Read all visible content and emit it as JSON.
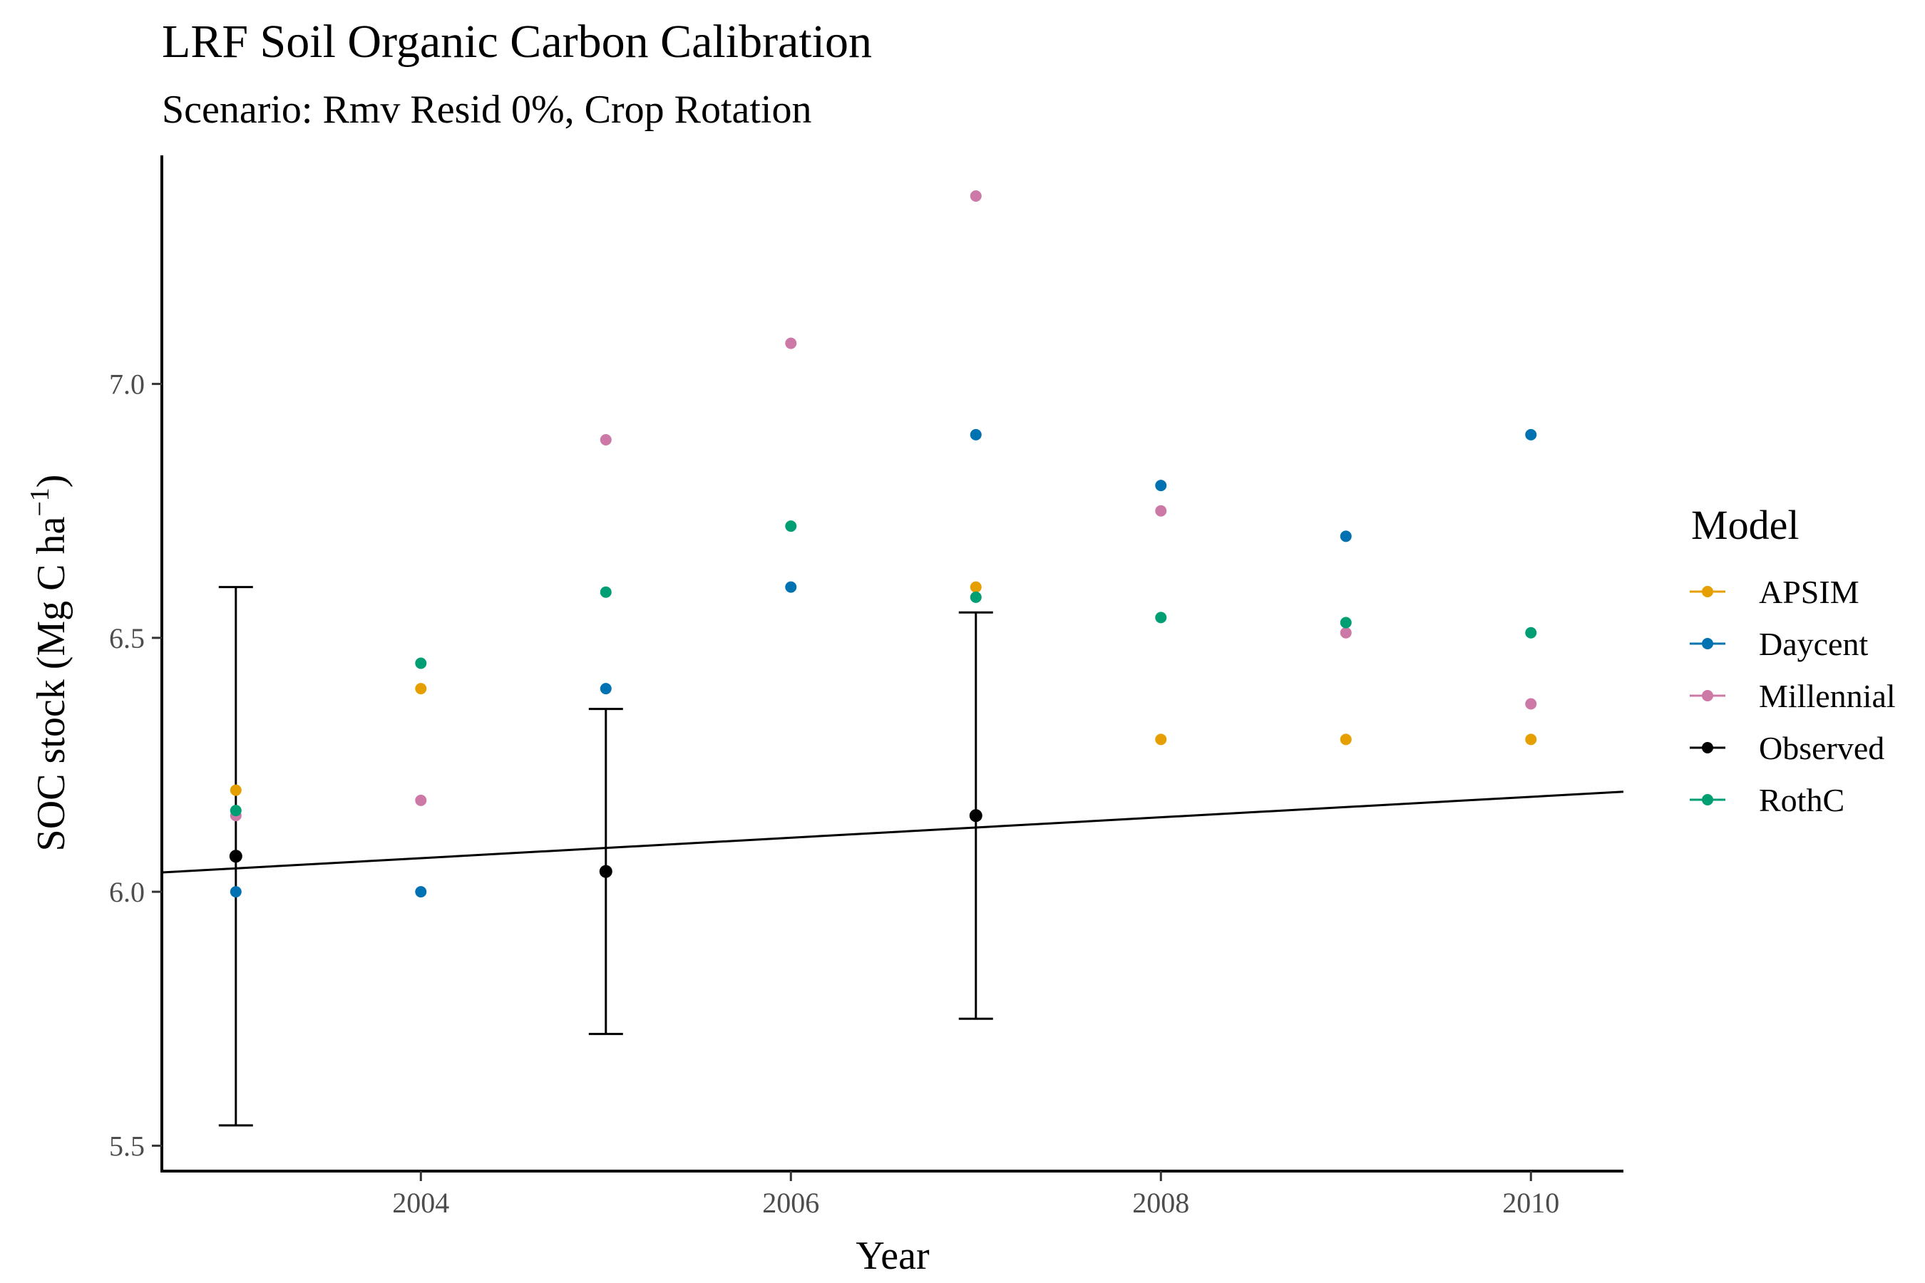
{
  "chart_data": {
    "type": "scatter",
    "title": "LRF Soil Organic Carbon Calibration",
    "subtitle": "Scenario: Rmv Resid 0%, Crop Rotation",
    "xlabel": "Year",
    "ylabel_main": "SOC stock (Mg C ha",
    "ylabel_sup": "−1",
    "ylabel_close": ")",
    "xlim": [
      2002.6,
      2010.5
    ],
    "ylim": [
      5.45,
      7.45
    ],
    "x_ticks": [
      2004,
      2006,
      2008,
      2010
    ],
    "x_tick_labels": [
      "2004",
      "2006",
      "2008",
      "2010"
    ],
    "y_ticks": [
      5.5,
      6.0,
      6.5,
      7.0
    ],
    "y_tick_labels": [
      "5.5",
      "6.0",
      "6.5",
      "7.0"
    ],
    "grid": false,
    "legend": {
      "title": "Model",
      "position": "right"
    },
    "colors": {
      "APSIM": "#E69F00",
      "Daycent": "#0072B2",
      "Millennial": "#CC79A7",
      "Observed": "#000000",
      "RothC": "#009E73"
    },
    "series": [
      {
        "name": "APSIM",
        "x": [
          2003,
          2004,
          2007,
          2008,
          2009,
          2010
        ],
        "y": [
          6.2,
          6.4,
          6.6,
          6.3,
          6.3,
          6.3
        ]
      },
      {
        "name": "Daycent",
        "x": [
          2003,
          2004,
          2005,
          2006,
          2007,
          2008,
          2009,
          2010
        ],
        "y": [
          6.0,
          6.0,
          6.4,
          6.6,
          6.9,
          6.8,
          6.7,
          6.9
        ]
      },
      {
        "name": "Millennial",
        "x": [
          2003,
          2004,
          2005,
          2006,
          2007,
          2008,
          2009,
          2010
        ],
        "y": [
          6.15,
          6.18,
          6.89,
          7.08,
          7.37,
          6.75,
          6.51,
          6.37
        ]
      },
      {
        "name": "Observed",
        "x": [
          2003,
          2005,
          2007
        ],
        "y": [
          6.07,
          6.04,
          6.15
        ],
        "err_low": [
          5.54,
          5.72,
          5.75
        ],
        "err_high": [
          6.6,
          6.36,
          6.55
        ]
      },
      {
        "name": "RothC",
        "x": [
          2003,
          2004,
          2005,
          2006,
          2007,
          2008,
          2009,
          2010
        ],
        "y": [
          6.16,
          6.45,
          6.59,
          6.72,
          6.58,
          6.54,
          6.53,
          6.51
        ]
      }
    ],
    "trend_line": {
      "x": [
        2002.6,
        2010.5
      ],
      "y": [
        6.038,
        6.197
      ]
    }
  }
}
